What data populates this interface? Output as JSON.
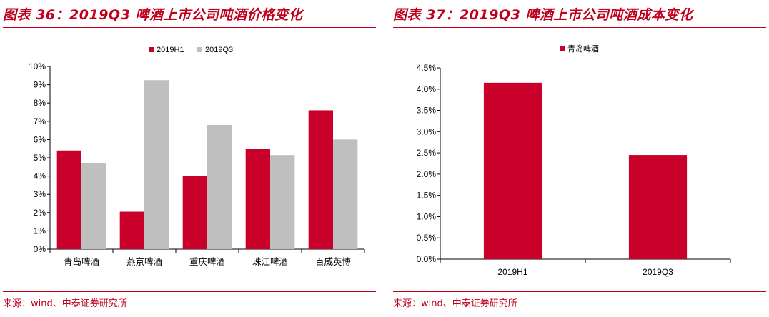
{
  "left_panel": {
    "title": "图表 36：2019Q3 啤酒上市公司吨酒价格变化",
    "source": "来源：wind、中泰证券研究所"
  },
  "right_panel": {
    "title": "图表 37：2019Q3 啤酒上市公司吨酒成本变化",
    "source": "来源：wind、中泰证券研究所"
  },
  "colors": {
    "accent": "#c0001c",
    "series_red": "#c8002a",
    "series_gray": "#bfbfbf"
  },
  "chart_data": [
    {
      "type": "bar",
      "title": "",
      "xlabel": "",
      "ylabel": "",
      "categories": [
        "青岛啤酒",
        "燕京啤酒",
        "重庆啤酒",
        "珠江啤酒",
        "百威英博"
      ],
      "series": [
        {
          "name": "2019H1",
          "values": [
            5.4,
            2.05,
            4.0,
            5.5,
            7.6
          ]
        },
        {
          "name": "2019Q3",
          "values": [
            4.7,
            9.25,
            6.8,
            5.15,
            6.0
          ]
        }
      ],
      "ylim": [
        0,
        10
      ],
      "yticks": [
        "0%",
        "1%",
        "2%",
        "3%",
        "4%",
        "5%",
        "6%",
        "7%",
        "8%",
        "9%",
        "10%"
      ],
      "legend_position": "top-center",
      "grid": false
    },
    {
      "type": "bar",
      "title": "",
      "xlabel": "",
      "ylabel": "",
      "categories": [
        "2019H1",
        "2019Q3"
      ],
      "series": [
        {
          "name": "青岛啤酒",
          "values": [
            4.15,
            2.45
          ]
        }
      ],
      "ylim": [
        0,
        4.5
      ],
      "yticks": [
        "0.0%",
        "0.5%",
        "1.0%",
        "1.5%",
        "2.0%",
        "2.5%",
        "3.0%",
        "3.5%",
        "4.0%",
        "4.5%"
      ],
      "legend_position": "top-center",
      "grid": false
    }
  ]
}
